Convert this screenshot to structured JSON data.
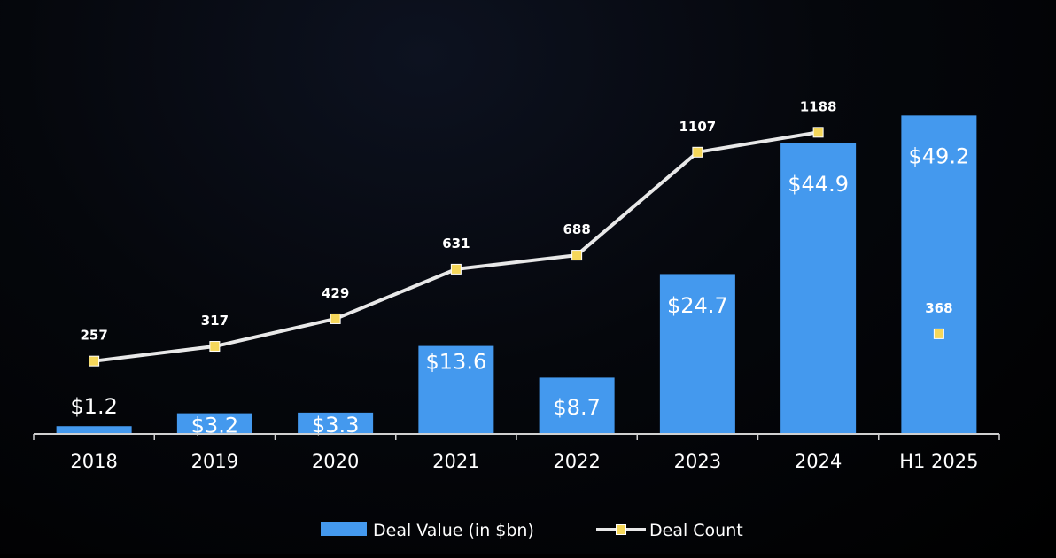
{
  "colors": {
    "background": "#000000",
    "bar": "#4499ee",
    "line": "#e8e8e8",
    "marker": "#f5d75a",
    "text": "#ffffff",
    "axis": "#d0d0d0"
  },
  "chart_data": {
    "type": "bar",
    "categories": [
      "2018",
      "2019",
      "2020",
      "2021",
      "2022",
      "2023",
      "2024",
      "H1 2025"
    ],
    "series": [
      {
        "name": "Deal Value (in $bn)",
        "type": "bar",
        "values": [
          1.2,
          3.2,
          3.3,
          13.6,
          8.7,
          24.7,
          44.9,
          49.2
        ],
        "labels": [
          "$1.2",
          "$3.2",
          "$3.3",
          "$13.6",
          "$8.7",
          "$24.7",
          "$44.9",
          "$49.2"
        ]
      },
      {
        "name": "Deal Count",
        "type": "line",
        "values": [
          257,
          317,
          429,
          631,
          688,
          1107,
          1188,
          368
        ],
        "labels": [
          "257",
          "317",
          "429",
          "631",
          "688",
          "1107",
          "1188",
          "368"
        ],
        "connected_points": 7
      }
    ],
    "legend_position": "bottom-center",
    "grid": false
  }
}
